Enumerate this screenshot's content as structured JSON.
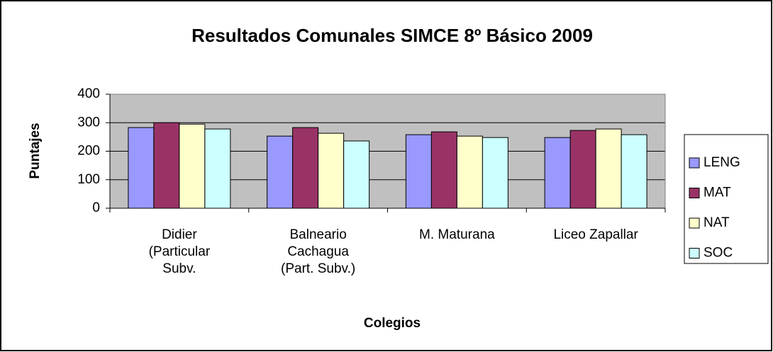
{
  "chart_data": {
    "type": "bar",
    "title": "Resultados Comunales SIMCE 8º Básico 2009",
    "x_label": "Colegios",
    "y_label": "Puntajes",
    "categories": [
      "Didier\n(Particular\nSubv.",
      "Balneario\nCachagua\n(Part. Subv.)",
      "M. Maturana",
      "Liceo Zapallar"
    ],
    "series": [
      {
        "name": "LENG",
        "color": "#9999ff",
        "values": [
          283,
          253,
          258,
          248
        ]
      },
      {
        "name": "MAT",
        "color": "#993366",
        "values": [
          300,
          283,
          268,
          273
        ]
      },
      {
        "name": "NAT",
        "color": "#ffffcc",
        "values": [
          295,
          263,
          253,
          278
        ]
      },
      {
        "name": "SOC",
        "color": "#ccffff",
        "values": [
          278,
          236,
          248,
          258
        ]
      }
    ],
    "ylim": [
      0,
      400
    ],
    "yticks": [
      0,
      100,
      200,
      300,
      400
    ],
    "grid": true,
    "legend": "right"
  }
}
